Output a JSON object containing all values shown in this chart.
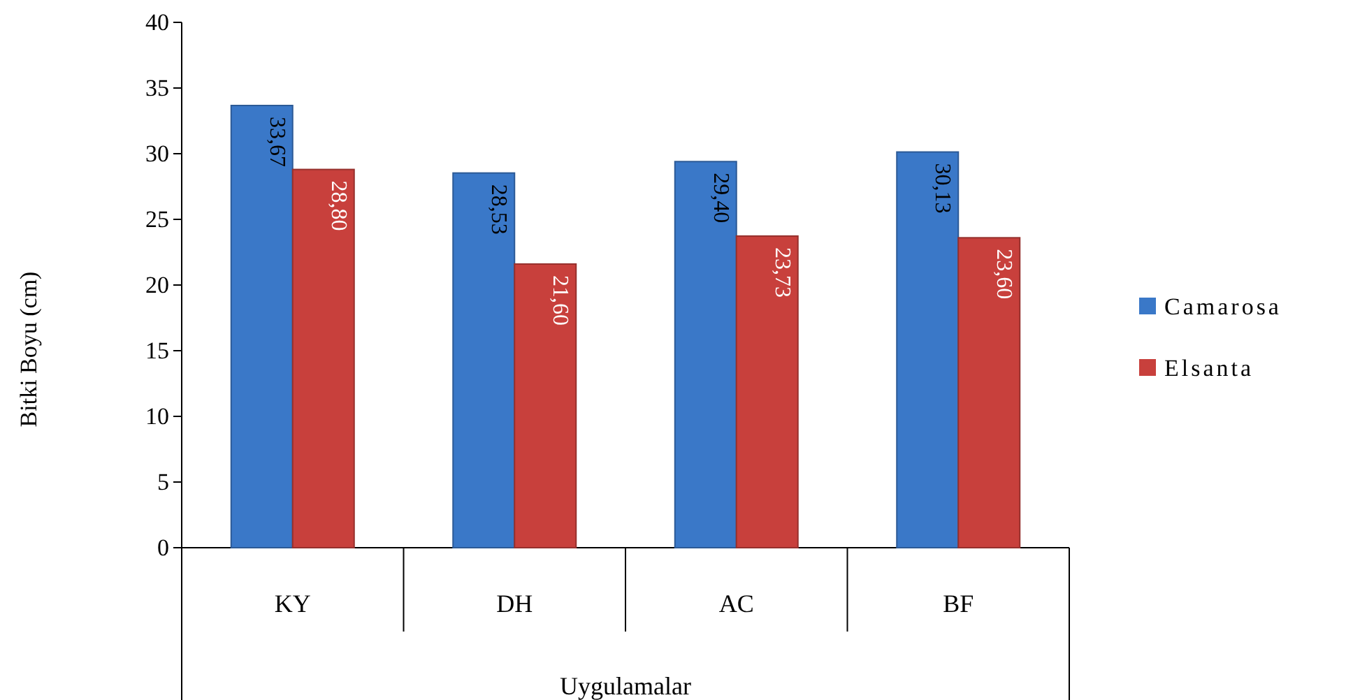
{
  "chart_data": {
    "type": "bar",
    "xlabel": "Uygulamalar",
    "ylabel": "Bitki Boyu (cm)",
    "categories": [
      "KY",
      "DH",
      "AC",
      "BF"
    ],
    "series": [
      {
        "name": "Camarosa",
        "color": "#3a78c8",
        "values": [
          33.67,
          28.53,
          29.4,
          30.13
        ],
        "value_labels": [
          "33,67",
          "28,53",
          "29,40",
          "30,13"
        ]
      },
      {
        "name": "Elsanta",
        "color": "#c8403c",
        "values": [
          28.8,
          21.6,
          23.73,
          23.6
        ],
        "value_labels": [
          "28,80",
          "21,60",
          "23,73",
          "23,60"
        ]
      }
    ],
    "ylim": [
      0,
      40
    ],
    "yticks": [
      0,
      5,
      10,
      15,
      20,
      25,
      30,
      35,
      40
    ],
    "legend": "right",
    "grid": false
  }
}
